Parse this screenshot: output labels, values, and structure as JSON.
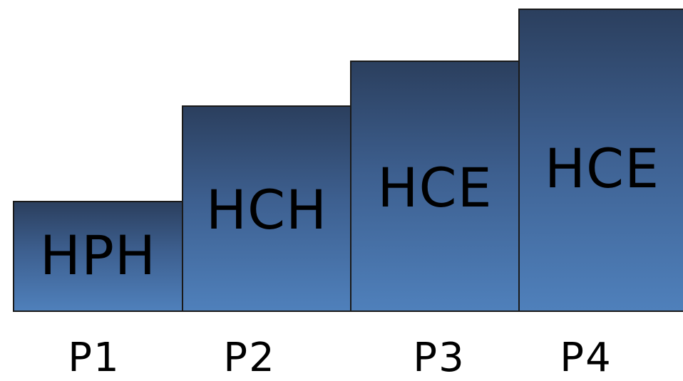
{
  "blocks": [
    {
      "label": "HPH"
    },
    {
      "label": "HCH"
    },
    {
      "label": "HCE"
    },
    {
      "label": "HCE"
    }
  ],
  "phases": [
    {
      "label": "P1"
    },
    {
      "label": "P2"
    },
    {
      "label": "P3"
    },
    {
      "label": "P4"
    }
  ],
  "colors": {
    "block_top": "#2b3f5e",
    "block_bottom": "#4f80bb",
    "border": "#1a1a1a",
    "text": "#000000",
    "background": "#ffffff"
  }
}
